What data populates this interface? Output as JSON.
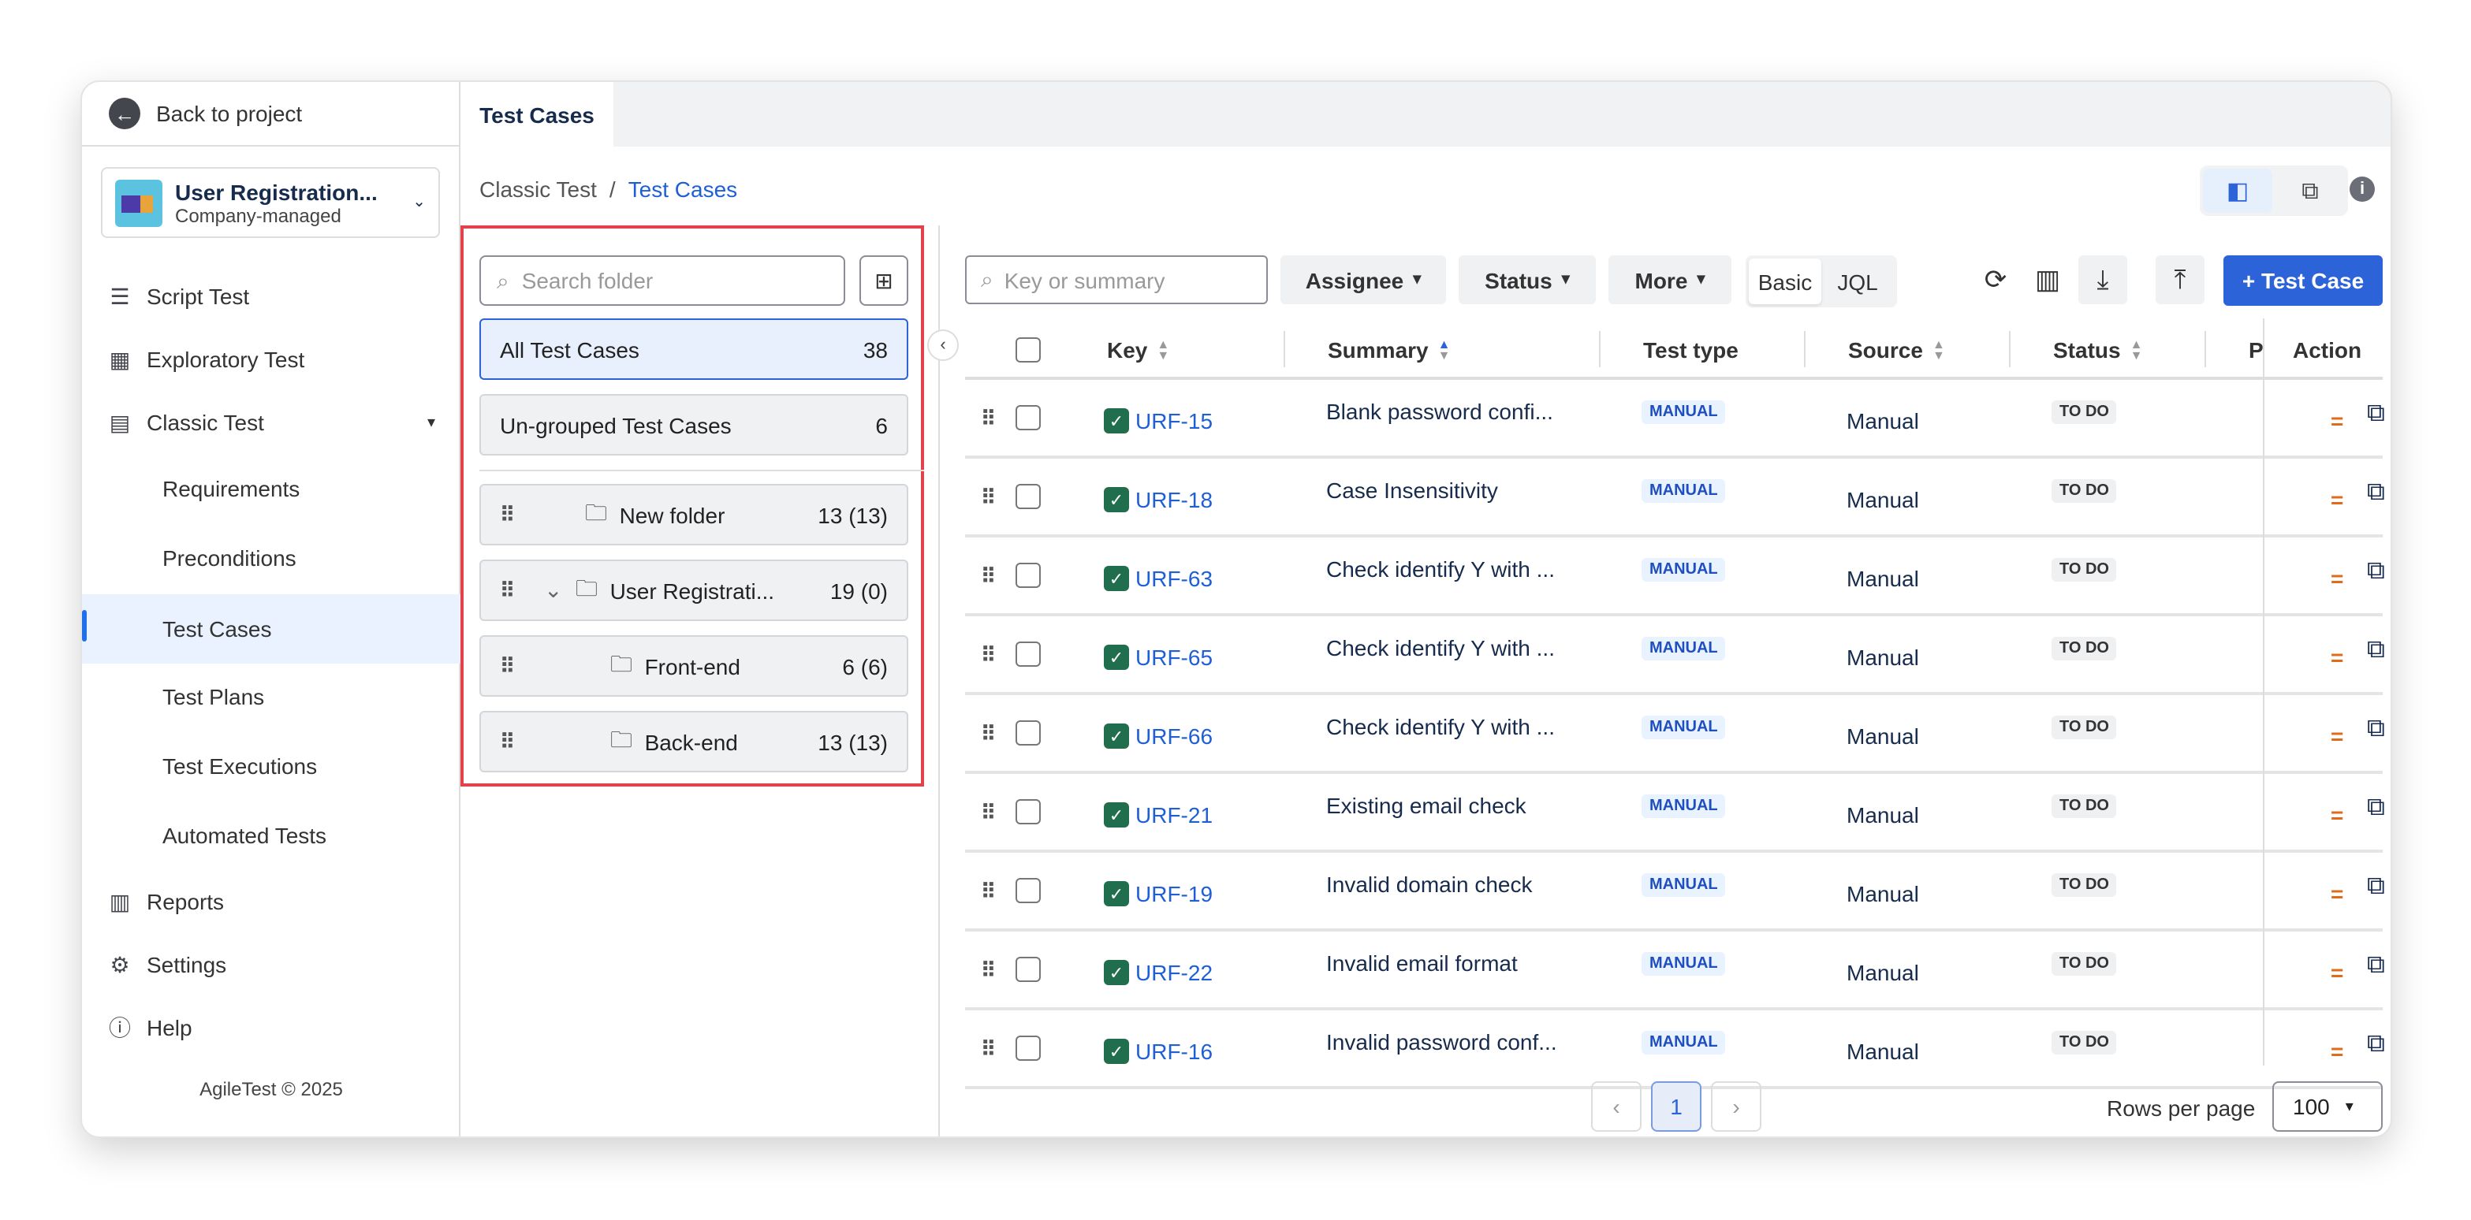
{
  "sidebar": {
    "back_label": "Back to project",
    "project": {
      "name": "User Registration...",
      "type": "Company-managed"
    },
    "items": [
      {
        "label": "Script Test",
        "icon": "script-icon"
      },
      {
        "label": "Exploratory Test",
        "icon": "grid-icon"
      },
      {
        "label": "Classic Test",
        "icon": "table-icon"
      },
      {
        "label": "Requirements"
      },
      {
        "label": "Preconditions"
      },
      {
        "label": "Test Cases"
      },
      {
        "label": "Test Plans"
      },
      {
        "label": "Test Executions"
      },
      {
        "label": "Automated Tests"
      },
      {
        "label": "Reports",
        "icon": "chart-icon"
      },
      {
        "label": "Settings",
        "icon": "gear-icon"
      },
      {
        "label": "Help",
        "icon": "help-icon"
      }
    ],
    "footer": "AgileTest © 2025"
  },
  "tabs": [
    {
      "label": "Test Cases",
      "active": true
    }
  ],
  "breadcrumb": {
    "parent": "Classic Test",
    "separator": "/",
    "current": "Test Cases"
  },
  "folders": {
    "search_placeholder": "Search folder",
    "all": {
      "label": "All Test Cases",
      "count": "38"
    },
    "ungrouped": {
      "label": "Un-grouped Test Cases",
      "count": "6"
    },
    "items": [
      {
        "label": "New folder",
        "count": "13 (13)"
      },
      {
        "label": "User Registrati...",
        "count": "19 (0)",
        "expanded": true
      },
      {
        "label": "Front-end",
        "count": "6 (6)"
      },
      {
        "label": "Back-end",
        "count": "13 (13)"
      }
    ]
  },
  "toolbar": {
    "search_placeholder": "Key or summary",
    "filters": [
      "Assignee",
      "Status",
      "More"
    ],
    "modes": [
      "Basic",
      "JQL"
    ],
    "add_label": "+ Test Case"
  },
  "table": {
    "columns": [
      "Key",
      "Summary",
      "Test type",
      "Source",
      "Status",
      "P",
      "Action"
    ],
    "rows": [
      {
        "key": "URF-15",
        "summary": "Blank password confi...",
        "type": "MANUAL",
        "source": "Manual",
        "status": "TO DO",
        "priority": "="
      },
      {
        "key": "URF-18",
        "summary": "Case Insensitivity",
        "type": "MANUAL",
        "source": "Manual",
        "status": "TO DO",
        "priority": "="
      },
      {
        "key": "URF-63",
        "summary": "Check identify Y with ...",
        "type": "MANUAL",
        "source": "Manual",
        "status": "TO DO",
        "priority": "="
      },
      {
        "key": "URF-65",
        "summary": "Check identify Y with ...",
        "type": "MANUAL",
        "source": "Manual",
        "status": "TO DO",
        "priority": "="
      },
      {
        "key": "URF-66",
        "summary": "Check identify Y with ...",
        "type": "MANUAL",
        "source": "Manual",
        "status": "TO DO",
        "priority": "="
      },
      {
        "key": "URF-21",
        "summary": "Existing email check",
        "type": "MANUAL",
        "source": "Manual",
        "status": "TO DO",
        "priority": "="
      },
      {
        "key": "URF-19",
        "summary": "Invalid domain check",
        "type": "MANUAL",
        "source": "Manual",
        "status": "TO DO",
        "priority": "="
      },
      {
        "key": "URF-22",
        "summary": "Invalid email format",
        "type": "MANUAL",
        "source": "Manual",
        "status": "TO DO",
        "priority": "="
      },
      {
        "key": "URF-16",
        "summary": "Invalid password conf...",
        "type": "MANUAL",
        "source": "Manual",
        "status": "TO DO",
        "priority": "="
      }
    ]
  },
  "pagination": {
    "page": "1",
    "rows_label": "Rows per page",
    "rows_value": "100"
  }
}
